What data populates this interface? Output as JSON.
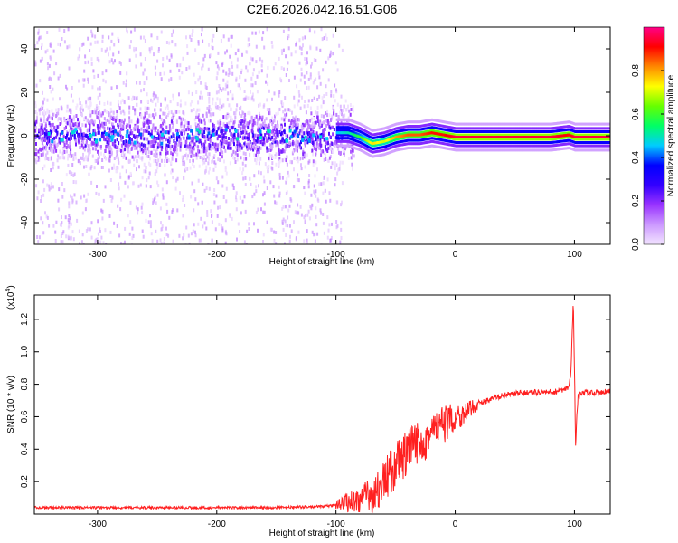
{
  "chart_data": [
    {
      "type": "heatmap",
      "title": "C2E6.2026.042.16.51.G06",
      "xlabel": "Height of straight line (km)",
      "ylabel": "Frequency (Hz)",
      "xlim": [
        -353,
        130
      ],
      "ylim": [
        -50,
        50
      ],
      "xticks": [
        -300,
        -200,
        -100,
        0,
        100
      ],
      "xtick_labels": [
        "-300",
        "-200",
        "-100",
        "0",
        "100"
      ],
      "yticks": [
        -40,
        -20,
        0,
        20,
        40
      ],
      "ytick_labels": [
        "-40",
        "-20",
        "0",
        "20",
        "40"
      ],
      "ridge": {
        "x": [
          -353,
          -300,
          -250,
          -200,
          -150,
          -110,
          -100,
          -90,
          -80,
          -70,
          -60,
          -50,
          -40,
          -30,
          -20,
          -10,
          0,
          20,
          50,
          80,
          95,
          100,
          130
        ],
        "freq": [
          1,
          1,
          0,
          1,
          0,
          1,
          2,
          2,
          0,
          -3,
          -2,
          0,
          1,
          1,
          2,
          1,
          0,
          0,
          0,
          0,
          1,
          0,
          0
        ],
        "amplitude": [
          0.25,
          0.25,
          0.25,
          0.25,
          0.25,
          0.3,
          0.45,
          0.5,
          0.6,
          0.75,
          0.7,
          0.8,
          0.85,
          0.85,
          0.9,
          0.9,
          0.95,
          0.95,
          0.95,
          0.95,
          0.9,
          0.95,
          0.95
        ]
      },
      "colorbar": {
        "label": "Normalized spectral amplitude",
        "range": [
          0,
          1
        ],
        "ticks": [
          0.0,
          0.2,
          0.4,
          0.6,
          0.8
        ],
        "tick_labels": [
          "0.0",
          "0.2",
          "0.4",
          "0.6",
          "0.8"
        ],
        "colors": [
          "#f2e4ff",
          "#cc99ff",
          "#9933ff",
          "#3300ff",
          "#0000ff",
          "#00ccff",
          "#00ff66",
          "#66ff00",
          "#ffff00",
          "#ff8800",
          "#ff0000",
          "#ff0088"
        ]
      }
    },
    {
      "type": "line",
      "xlabel": "Height of straight line (km)",
      "ylabel": "SNR (10 * v/v)",
      "scale_label": "(x10",
      "scale_exponent": "4",
      "scale_close": ")",
      "xlim": [
        -353,
        130
      ],
      "ylim": [
        0,
        1.35
      ],
      "xticks": [
        -300,
        -200,
        -100,
        0,
        100
      ],
      "xtick_labels": [
        "-300",
        "-200",
        "-100",
        "0",
        "100"
      ],
      "yticks": [
        0.2,
        0.4,
        0.6,
        0.8,
        1.0,
        1.2
      ],
      "ytick_labels": [
        "0.2",
        "0.4",
        "0.6",
        "0.8",
        "1.0",
        "1.2"
      ],
      "color": "#ff2020",
      "series": {
        "name": "SNR",
        "x": [
          -353,
          -300,
          -250,
          -200,
          -150,
          -120,
          -105,
          -95,
          -85,
          -75,
          -65,
          -60,
          -55,
          -50,
          -45,
          -40,
          -35,
          -30,
          -25,
          -20,
          -15,
          -10,
          -5,
          0,
          5,
          10,
          15,
          20,
          30,
          40,
          50,
          60,
          70,
          80,
          90,
          95,
          97,
          98,
          99,
          100,
          101,
          102,
          103,
          105,
          110,
          120,
          130
        ],
        "y": [
          0.04,
          0.04,
          0.04,
          0.04,
          0.04,
          0.045,
          0.05,
          0.07,
          0.08,
          0.1,
          0.14,
          0.2,
          0.25,
          0.3,
          0.33,
          0.38,
          0.41,
          0.45,
          0.47,
          0.5,
          0.53,
          0.55,
          0.57,
          0.6,
          0.61,
          0.63,
          0.66,
          0.68,
          0.71,
          0.73,
          0.74,
          0.75,
          0.75,
          0.75,
          0.76,
          0.78,
          0.85,
          1.1,
          1.32,
          0.9,
          0.4,
          0.6,
          0.72,
          0.74,
          0.75,
          0.75,
          0.76
        ]
      }
    }
  ]
}
